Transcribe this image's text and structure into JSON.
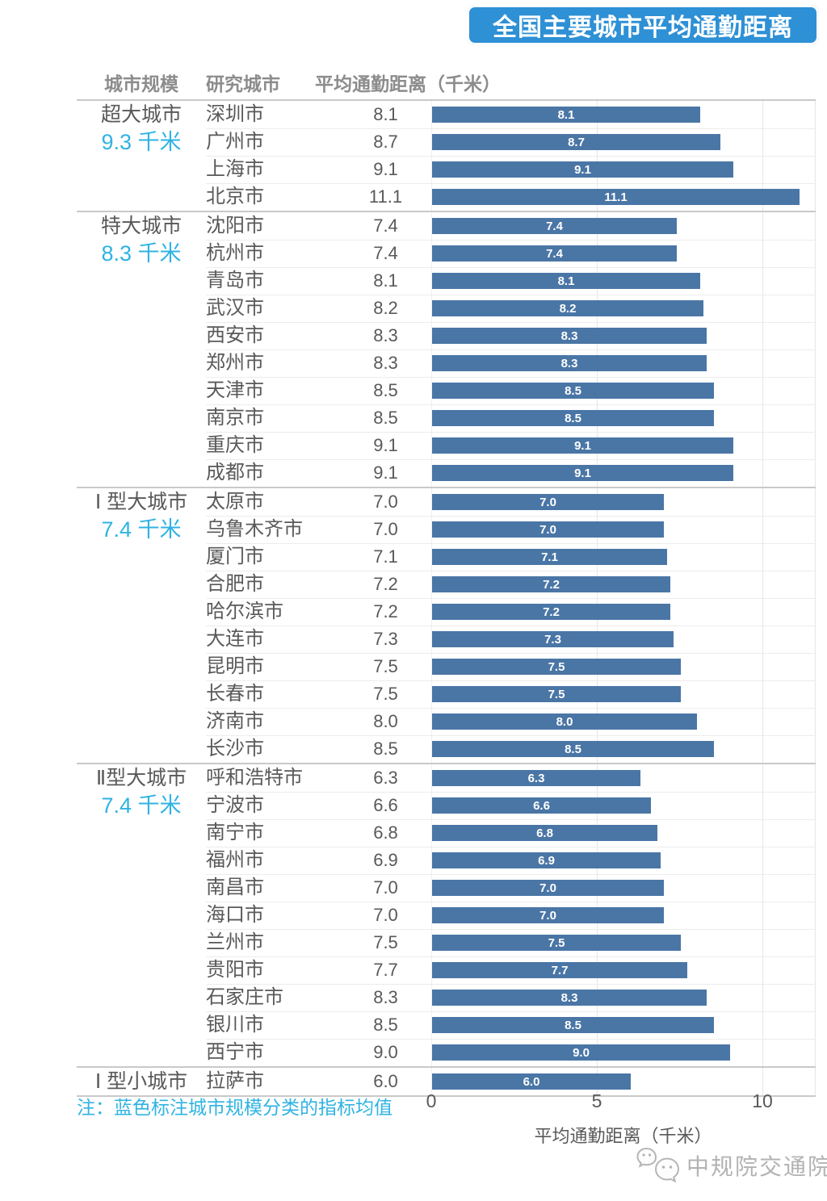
{
  "title": "全国主要城市平均通勤距离",
  "table": {
    "headers": [
      "城市规模",
      "研究城市",
      "平均通勤距离（千米）"
    ]
  },
  "note": "注：蓝色标注城市规模分类的指标均值",
  "watermark": "中规院交通院",
  "colors": {
    "bar": "#4a76a6",
    "title_bg": "#2e90d5",
    "accent": "#2fb3e2"
  },
  "chart_data": {
    "type": "bar",
    "title": "全国主要城市平均通勤距离",
    "xlabel": "平均通勤距离（千米）",
    "xlim": [
      0,
      11.6
    ],
    "xticks": [
      "0",
      "5",
      "10"
    ],
    "grid": "faint vertical lines at ticks",
    "legend": "none",
    "groups": [
      {
        "name": "超大城市",
        "mean_label": "9.3 千米",
        "mean": 9.3,
        "cities": [
          [
            "深圳市",
            8.1
          ],
          [
            "广州市",
            8.7
          ],
          [
            "上海市",
            9.1
          ],
          [
            "北京市",
            11.1
          ]
        ]
      },
      {
        "name": "特大城市",
        "mean_label": "8.3 千米",
        "mean": 8.3,
        "cities": [
          [
            "沈阳市",
            7.4
          ],
          [
            "杭州市",
            7.4
          ],
          [
            "青岛市",
            8.1
          ],
          [
            "武汉市",
            8.2
          ],
          [
            "西安市",
            8.3
          ],
          [
            "郑州市",
            8.3
          ],
          [
            "天津市",
            8.5
          ],
          [
            "南京市",
            8.5
          ],
          [
            "重庆市",
            9.1
          ],
          [
            "成都市",
            9.1
          ]
        ]
      },
      {
        "name": "Ⅰ 型大城市",
        "mean_label": "7.4 千米",
        "mean": 7.4,
        "cities": [
          [
            "太原市",
            7.0
          ],
          [
            "乌鲁木齐市",
            7.0
          ],
          [
            "厦门市",
            7.1
          ],
          [
            "合肥市",
            7.2
          ],
          [
            "哈尔滨市",
            7.2
          ],
          [
            "大连市",
            7.3
          ],
          [
            "昆明市",
            7.5
          ],
          [
            "长春市",
            7.5
          ],
          [
            "济南市",
            8.0
          ],
          [
            "长沙市",
            8.5
          ]
        ]
      },
      {
        "name": "Ⅱ型大城市",
        "mean_label": "7.4 千米",
        "mean": 7.4,
        "cities": [
          [
            "呼和浩特市",
            6.3
          ],
          [
            "宁波市",
            6.6
          ],
          [
            "南宁市",
            6.8
          ],
          [
            "福州市",
            6.9
          ],
          [
            "南昌市",
            7.0
          ],
          [
            "海口市",
            7.0
          ],
          [
            "兰州市",
            7.5
          ],
          [
            "贵阳市",
            7.7
          ],
          [
            "石家庄市",
            8.3
          ],
          [
            "银川市",
            8.5
          ],
          [
            "西宁市",
            9.0
          ]
        ]
      },
      {
        "name": "Ⅰ 型小城市",
        "mean_label": "",
        "mean": null,
        "cities": [
          [
            "拉萨市",
            6.0
          ]
        ]
      }
    ]
  }
}
